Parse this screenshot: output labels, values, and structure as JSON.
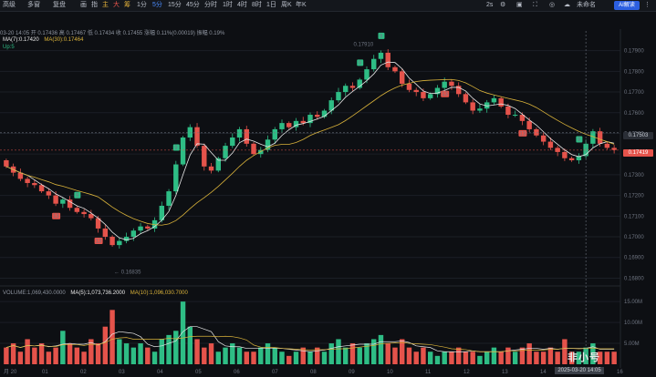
{
  "toolbar": {
    "items": [
      "高级",
      "多窗",
      "复盘",
      "画",
      "指",
      "主",
      "大",
      "筹",
      "1分",
      "5分",
      "15分",
      "45分",
      "分时",
      "1时",
      "4时",
      "8时",
      "1日",
      "周K",
      "年K"
    ],
    "active_interval": "5分",
    "right_label_1": "2s",
    "right_label_2": "未命名",
    "ai_button": "AI解读"
  },
  "info": {
    "date": "03-20 14:05",
    "open_label": "开",
    "open": "0.17436",
    "high_label": "高",
    "high": "0.17467",
    "low_label": "低",
    "low": "0.17434",
    "close_label": "收",
    "close": "0.17455",
    "change_label": "涨幅",
    "change": "0.11%(0.00019)",
    "amplitude_label": "振幅",
    "amplitude": "0.19%"
  },
  "ma": {
    "ma7": "MA(7):0.17420",
    "ma30": "MA(30):0.17464",
    "up": "Up:5"
  },
  "price_axis": [
    "0.17900",
    "0.17800",
    "0.17700",
    "0.17600",
    "0.17500",
    "0.17400",
    "0.17300",
    "0.17200",
    "0.17100",
    "0.17000",
    "0.16900",
    "0.16800"
  ],
  "price_tags": {
    "crosshair": "0.17503",
    "last": "0.17419"
  },
  "annotations": {
    "high": "0.17910",
    "low": "0.16835",
    "marker_9": "9",
    "marker_13": "13"
  },
  "volume": {
    "legend_volume": "VOLUME:1,069,430.0000",
    "legend_ma5": "MA(5):1,073,736.2000",
    "legend_ma10": "MA(10):1,096,030.7000",
    "axis": [
      "15.00M",
      "10.00M",
      "5.00M"
    ]
  },
  "time_axis": [
    "月 20",
    "01",
    "02",
    "03",
    "04",
    "05",
    "06",
    "07",
    "08",
    "09",
    "10",
    "11",
    "12",
    "13",
    "14",
    "15",
    "16"
  ],
  "crosshair_date": "2025-03-20 14:05",
  "watermark": "非小号",
  "colors": {
    "up": "#2ebd85",
    "down": "#e5534b",
    "ma7": "#e8e8e8",
    "ma30": "#d9b23a",
    "accent": "#2c5fe0"
  },
  "chart_data": {
    "type": "candlestick",
    "xlabel": "",
    "ylabel": "",
    "ylim": [
      0.1678,
      0.1796
    ],
    "high_point": 0.1791,
    "low_point": 0.16835,
    "last_price": 0.17419,
    "crosshair_price": 0.17503,
    "close_series": [
      0.1734,
      0.1731,
      0.1728,
      0.1726,
      0.1725,
      0.1722,
      0.172,
      0.1716,
      0.1718,
      0.1714,
      0.1712,
      0.1711,
      0.1709,
      0.1704,
      0.17,
      0.1696,
      0.1698,
      0.17,
      0.1703,
      0.1705,
      0.1704,
      0.1708,
      0.1715,
      0.1722,
      0.1735,
      0.1748,
      0.1753,
      0.1744,
      0.1734,
      0.1732,
      0.1738,
      0.1744,
      0.1748,
      0.1752,
      0.1745,
      0.174,
      0.1742,
      0.1747,
      0.1752,
      0.1755,
      0.1753,
      0.1756,
      0.1755,
      0.1759,
      0.1758,
      0.1761,
      0.1766,
      0.177,
      0.1773,
      0.1772,
      0.1776,
      0.1781,
      0.1786,
      0.1789,
      0.1782,
      0.178,
      0.1774,
      0.1771,
      0.177,
      0.1767,
      0.1769,
      0.1772,
      0.1775,
      0.1773,
      0.1769,
      0.1765,
      0.1761,
      0.1762,
      0.1765,
      0.1767,
      0.1763,
      0.1759,
      0.1759,
      0.1756,
      0.1752,
      0.1749,
      0.1746,
      0.1743,
      0.1741,
      0.1738,
      0.1737,
      0.1739,
      0.1745,
      0.1751,
      0.1745,
      0.1743,
      0.1742
    ],
    "volume_series": [
      4,
      5,
      3,
      6,
      4,
      5,
      3,
      4,
      8,
      5,
      4,
      3,
      6,
      5,
      9,
      13,
      6,
      5,
      4,
      5,
      4,
      3,
      6,
      7,
      8,
      15,
      9,
      6,
      4,
      5,
      3,
      4,
      5,
      4,
      3,
      3,
      4,
      5,
      4,
      3,
      2,
      3,
      4,
      3,
      4,
      3,
      5,
      6,
      4,
      5,
      4,
      5,
      6,
      7,
      5,
      4,
      6,
      4,
      3,
      4,
      3,
      2,
      3,
      3,
      4,
      3,
      3,
      2,
      3,
      4,
      3,
      4,
      3,
      4,
      5,
      3,
      3,
      4,
      3,
      6,
      3,
      3,
      4,
      5,
      3,
      3,
      3
    ]
  }
}
